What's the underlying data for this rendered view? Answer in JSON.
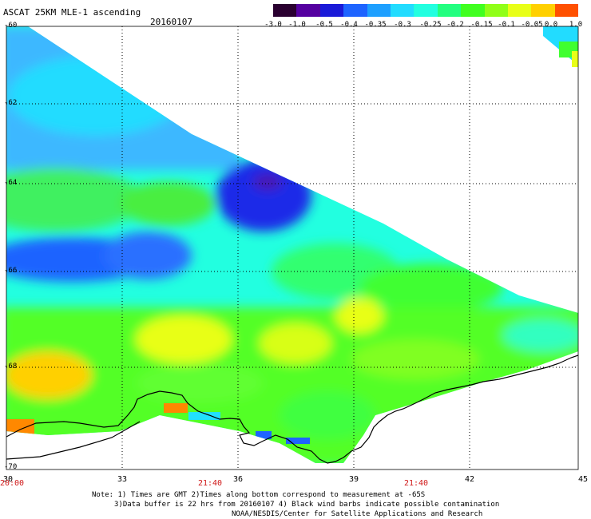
{
  "header": {
    "title": "ASCAT 25KM MLE-1 ascending",
    "date": "20160107"
  },
  "colorbar": {
    "labels": [
      "-3.0",
      "-1.0",
      "-0.5",
      "-0.4",
      "-0.35",
      "-0.3",
      "-0.25",
      "-0.2",
      "-0.15",
      "-0.1",
      "-0.05",
      "0.0",
      "1.0"
    ],
    "colors": [
      "#2a0030",
      "#5500a0",
      "#1a1ad8",
      "#1e64ff",
      "#1ea0ff",
      "#22dcff",
      "#22ffe0",
      "#22ff80",
      "#40ff20",
      "#90ff18",
      "#e8ff18",
      "#ffd000",
      "#ff5000"
    ]
  },
  "map": {
    "lat_labels": [
      "-60",
      "-62",
      "-64",
      "-66",
      "-68",
      "-70"
    ],
    "lon_labels": [
      "30",
      "33",
      "36",
      "39",
      "42",
      "45"
    ],
    "time_labels": [
      "20:00",
      "21:40",
      "21:40"
    ],
    "land_color": "#ffffff",
    "coast_color": "#000000"
  },
  "notes": {
    "line1": "Note: 1) Times are GMT 2)Times along bottom correspond to measurement at -65S",
    "line2": "3)Data buffer is 22 hrs from 20160107 4) Black wind barbs indicate possible contamination",
    "line3": "NOAA/NESDIS/Center for Satellite Applications and Research"
  }
}
